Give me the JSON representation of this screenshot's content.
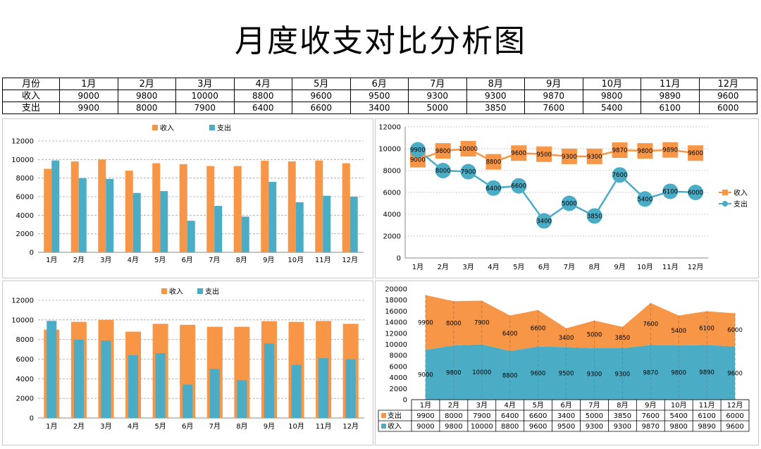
{
  "title": "月度收支对比分析图",
  "table": {
    "month_header": "月份",
    "income_label": "收入",
    "expense_label": "支出"
  },
  "colors": {
    "income": "#F79646",
    "expense": "#4BACC6"
  },
  "chart_data": [
    {
      "type": "bar",
      "title": "",
      "categories": [
        "1月",
        "2月",
        "3月",
        "4月",
        "5月",
        "6月",
        "7月",
        "8月",
        "9月",
        "10月",
        "11月",
        "12月"
      ],
      "series": [
        {
          "name": "收入",
          "values": [
            9000,
            9800,
            10000,
            8800,
            9600,
            9500,
            9300,
            9300,
            9870,
            9800,
            9890,
            9600
          ]
        },
        {
          "name": "支出",
          "values": [
            9900,
            8000,
            7900,
            6400,
            6600,
            3400,
            5000,
            3850,
            7600,
            5400,
            6100,
            6000
          ]
        }
      ],
      "ylim": [
        0,
        12000
      ],
      "yticks": [
        0,
        2000,
        4000,
        6000,
        8000,
        10000,
        12000
      ],
      "legend": "top"
    },
    {
      "type": "line",
      "title": "",
      "categories": [
        "1月",
        "2月",
        "3月",
        "4月",
        "5月",
        "6月",
        "7月",
        "8月",
        "9月",
        "10月",
        "11月",
        "12月"
      ],
      "series": [
        {
          "name": "收入",
          "values": [
            9000,
            9800,
            10000,
            8800,
            9600,
            9500,
            9300,
            9300,
            9870,
            9800,
            9890,
            9600
          ]
        },
        {
          "name": "支出",
          "values": [
            9900,
            8000,
            7900,
            6400,
            6600,
            3400,
            5000,
            3850,
            7600,
            5400,
            6100,
            6000
          ]
        }
      ],
      "ylim": [
        0,
        12000
      ],
      "yticks": [
        0,
        2000,
        4000,
        6000,
        8000,
        10000,
        12000
      ],
      "legend": "right"
    },
    {
      "type": "bar",
      "subtype": "overlapping",
      "title": "",
      "categories": [
        "1月",
        "2月",
        "3月",
        "4月",
        "5月",
        "6月",
        "7月",
        "8月",
        "9月",
        "10月",
        "11月",
        "12月"
      ],
      "series": [
        {
          "name": "收入",
          "values": [
            9000,
            9800,
            10000,
            8800,
            9600,
            9500,
            9300,
            9300,
            9870,
            9800,
            9890,
            9600
          ]
        },
        {
          "name": "支出",
          "values": [
            9900,
            8000,
            7900,
            6400,
            6600,
            3400,
            5000,
            3850,
            7600,
            5400,
            6100,
            6000
          ]
        }
      ],
      "ylim": [
        0,
        12000
      ],
      "yticks": [
        0,
        2000,
        4000,
        6000,
        8000,
        10000,
        12000
      ],
      "legend": "top"
    },
    {
      "type": "area",
      "subtype": "stacked",
      "title": "",
      "categories": [
        "1月",
        "2月",
        "3月",
        "4月",
        "5月",
        "6月",
        "7月",
        "8月",
        "9月",
        "10月",
        "11月",
        "12月"
      ],
      "series": [
        {
          "name": "收入",
          "values": [
            9000,
            9800,
            10000,
            8800,
            9600,
            9500,
            9300,
            9300,
            9870,
            9800,
            9890,
            9600
          ]
        },
        {
          "name": "支出",
          "values": [
            9900,
            8000,
            7900,
            6400,
            6600,
            3400,
            5000,
            3850,
            7600,
            5400,
            6100,
            6000
          ]
        }
      ],
      "ylim": [
        0,
        20000
      ],
      "yticks": [
        0,
        2000,
        4000,
        6000,
        8000,
        10000,
        12000,
        14000,
        16000,
        18000,
        20000
      ],
      "legend": "data-table"
    }
  ]
}
